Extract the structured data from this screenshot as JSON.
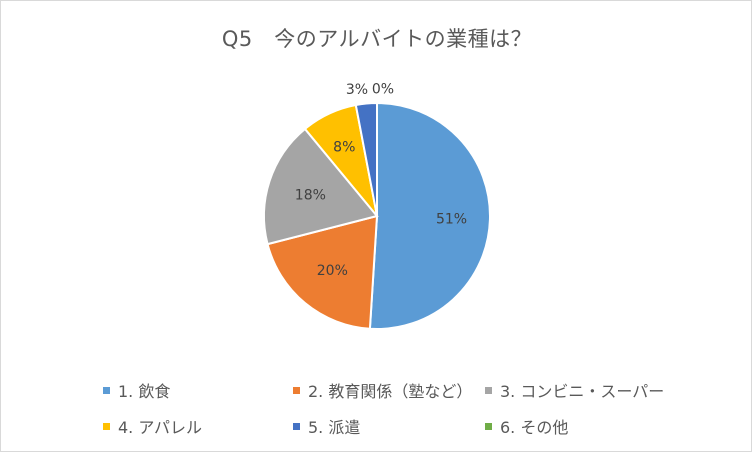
{
  "chart_data": {
    "type": "pie",
    "title": "Q5　今のアルバイトの業種は？",
    "categories": [
      "1. 飲食",
      "2. 教育関係（塾など）",
      "3. コンビニ・スーパー",
      "4. アパレル",
      "5. 派遣",
      "6. その他"
    ],
    "values": [
      51,
      20,
      18,
      8,
      3,
      0
    ],
    "data_labels": [
      "51%",
      "20%",
      "18%",
      "8%",
      "3%",
      "0%"
    ],
    "colors": [
      "#5b9bd5",
      "#ed7d31",
      "#a5a5a5",
      "#ffc000",
      "#4472c4",
      "#70ad47"
    ],
    "legend_position": "bottom"
  }
}
